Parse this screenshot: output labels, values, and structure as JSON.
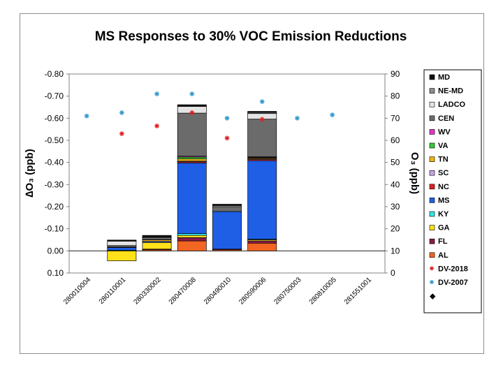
{
  "chart_data": {
    "type": "bar",
    "title": "MS Responses to 30% VOC Emission Reductions",
    "ylabel": "∆O₃ (ppb)",
    "y2label": "O₃ (ppb)",
    "ylim": [
      0.1,
      -0.8
    ],
    "y2lim": [
      0,
      90
    ],
    "yticks": [
      "-0.80",
      "-0.70",
      "-0.60",
      "-0.50",
      "-0.40",
      "-0.30",
      "-0.20",
      "-0.10",
      "0.00",
      "0.10"
    ],
    "y2ticks": [
      "90",
      "80",
      "70",
      "60",
      "50",
      "40",
      "30",
      "20",
      "10",
      "0"
    ],
    "categories": [
      "280010004",
      "280110001",
      "280330002",
      "280470008",
      "280490010",
      "280590006",
      "280750003",
      "280810005",
      "281551001"
    ],
    "series": [
      {
        "name": "AL",
        "color": "#f26522",
        "values": [
          0,
          0,
          -0.005,
          -0.045,
          -0.005,
          -0.035,
          0,
          0,
          0
        ]
      },
      {
        "name": "FL",
        "color": "#8b1a4a",
        "values": [
          0,
          0,
          -0.003,
          -0.015,
          -0.003,
          -0.01,
          0,
          0,
          0
        ]
      },
      {
        "name": "GA",
        "color": "#ffe11a",
        "values": [
          0,
          0.045,
          -0.03,
          -0.01,
          0,
          -0.005,
          0,
          0,
          0
        ]
      },
      {
        "name": "KY",
        "color": "#33e6e6",
        "values": [
          0,
          -0.003,
          0,
          -0.008,
          0,
          -0.003,
          0,
          0,
          0
        ]
      },
      {
        "name": "MS",
        "color": "#1f5fe6",
        "values": [
          0,
          -0.012,
          -0.005,
          -0.32,
          -0.17,
          -0.355,
          0,
          0,
          0
        ]
      },
      {
        "name": "NC",
        "color": "#e02020",
        "values": [
          0,
          0,
          0,
          -0.005,
          0,
          -0.005,
          0,
          0,
          0
        ]
      },
      {
        "name": "SC",
        "color": "#c8a2e6",
        "values": [
          0,
          0,
          0,
          -0.003,
          0,
          -0.003,
          0,
          0,
          0
        ]
      },
      {
        "name": "TN",
        "color": "#f2b21a",
        "values": [
          0,
          -0.002,
          -0.007,
          -0.01,
          0,
          -0.004,
          0,
          0,
          0
        ]
      },
      {
        "name": "VA",
        "color": "#33cc33",
        "values": [
          0,
          0,
          0,
          -0.008,
          0,
          -0.003,
          0,
          0,
          0
        ]
      },
      {
        "name": "WV",
        "color": "#e633cc",
        "values": [
          0,
          0,
          0,
          -0.004,
          0,
          -0.003,
          0,
          0,
          0
        ]
      },
      {
        "name": "CEN",
        "color": "#6b6b6b",
        "values": [
          0,
          -0.007,
          -0.005,
          -0.195,
          -0.02,
          -0.17,
          0,
          0,
          0
        ]
      },
      {
        "name": "LADCO",
        "color": "#e4e4e4",
        "values": [
          0,
          -0.02,
          -0.005,
          -0.03,
          -0.005,
          -0.025,
          0,
          0,
          0
        ]
      },
      {
        "name": "NE-MD",
        "color": "#8c8c8c",
        "values": [
          0,
          -0.003,
          -0.003,
          -0.003,
          -0.003,
          -0.005,
          0,
          0,
          0
        ]
      },
      {
        "name": "MD",
        "color": "#111111",
        "values": [
          0,
          -0.002,
          -0.007,
          -0.005,
          -0.005,
          -0.005,
          0,
          0,
          0
        ]
      }
    ],
    "dv2018": {
      "name": "DV-2018",
      "color": "#e02020",
      "values": [
        null,
        63,
        66.5,
        72.5,
        61,
        69.5,
        null,
        null,
        null
      ]
    },
    "dv2007": {
      "name": "DV-2007",
      "color": "#3399cc",
      "values": [
        71,
        72.5,
        81,
        81,
        70,
        77.5,
        70,
        71.5,
        null
      ]
    },
    "legend_extra": {
      "name": "",
      "marker": "◆"
    },
    "legend_position": "right"
  }
}
